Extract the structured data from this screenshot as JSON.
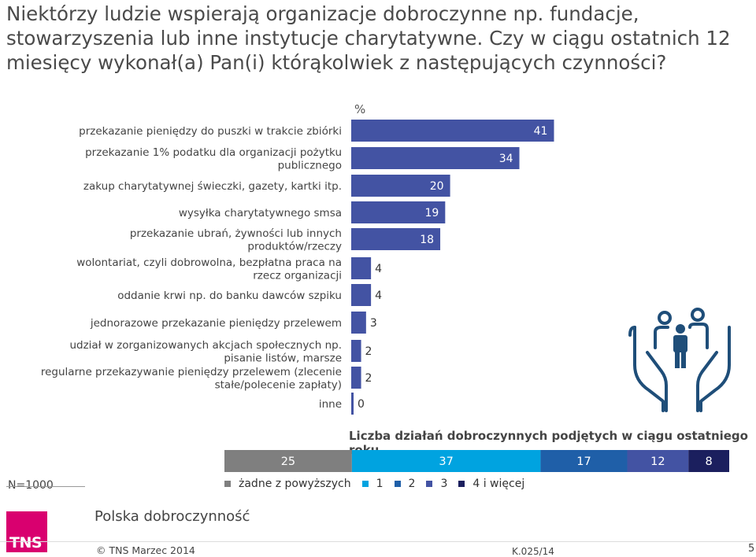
{
  "title": "Niektórzy ludzie wspierają organizacje dobroczynne np. fundacje, stowarzyszenia lub inne instytucje charytatywne. Czy w ciągu ostatnich 12 miesięcy wykonał(a) Pan(i) którąkolwiek z następujących czynności?",
  "chart_data": [
    {
      "type": "bar",
      "orientation": "horizontal",
      "unit_label": "%",
      "color": "#4353a3",
      "categories": [
        "przekazanie pieniędzy do puszki w trakcie zbiórki",
        "przekazanie 1% podatku dla organizacji pożytku publicznego",
        "zakup charytatywnej świeczki, gazety, kartki itp.",
        "wysyłka charytatywnego smsa",
        "przekazanie ubrań, żywności lub innych produktów/rzeczy",
        "wolontariat, czyli dobrowolna, bezpłatna praca na rzecz organizacji",
        "oddanie krwi np. do banku dawców szpiku",
        "jednorazowe przekazanie pieniędzy przelewem",
        "udział w zorganizowanych akcjach społecznych np. pisanie listów, marsze",
        "regularne przekazywanie pieniędzy przelewem (zlecenie stałe/polecenie zapłaty)",
        "inne"
      ],
      "values": [
        41,
        34,
        20,
        19,
        18,
        4,
        4,
        3,
        2,
        2,
        0
      ]
    },
    {
      "type": "bar",
      "orientation": "stacked-100",
      "title": "Liczba działań dobroczynnych podjętych w ciągu ostatniego roku",
      "series": [
        {
          "name": "żadne z powyższych",
          "values": [
            25
          ],
          "color": "#7f7f7f"
        },
        {
          "name": "1",
          "values": [
            37
          ],
          "color": "#00a3e0"
        },
        {
          "name": "2",
          "values": [
            17
          ],
          "color": "#1f5fa8"
        },
        {
          "name": "3",
          "values": [
            12
          ],
          "color": "#4353a3"
        },
        {
          "name": "4 i więcej",
          "values": [
            8
          ],
          "color": "#1b1f5e"
        }
      ]
    }
  ],
  "footer": {
    "n_label": "N=1000",
    "brand": "Polska dobroczynność",
    "logo": "TNS",
    "copyright": "© TNS Marzec 2014",
    "code": "K.025/14",
    "page": "5"
  },
  "illustration": "hands-holding-people-icon"
}
